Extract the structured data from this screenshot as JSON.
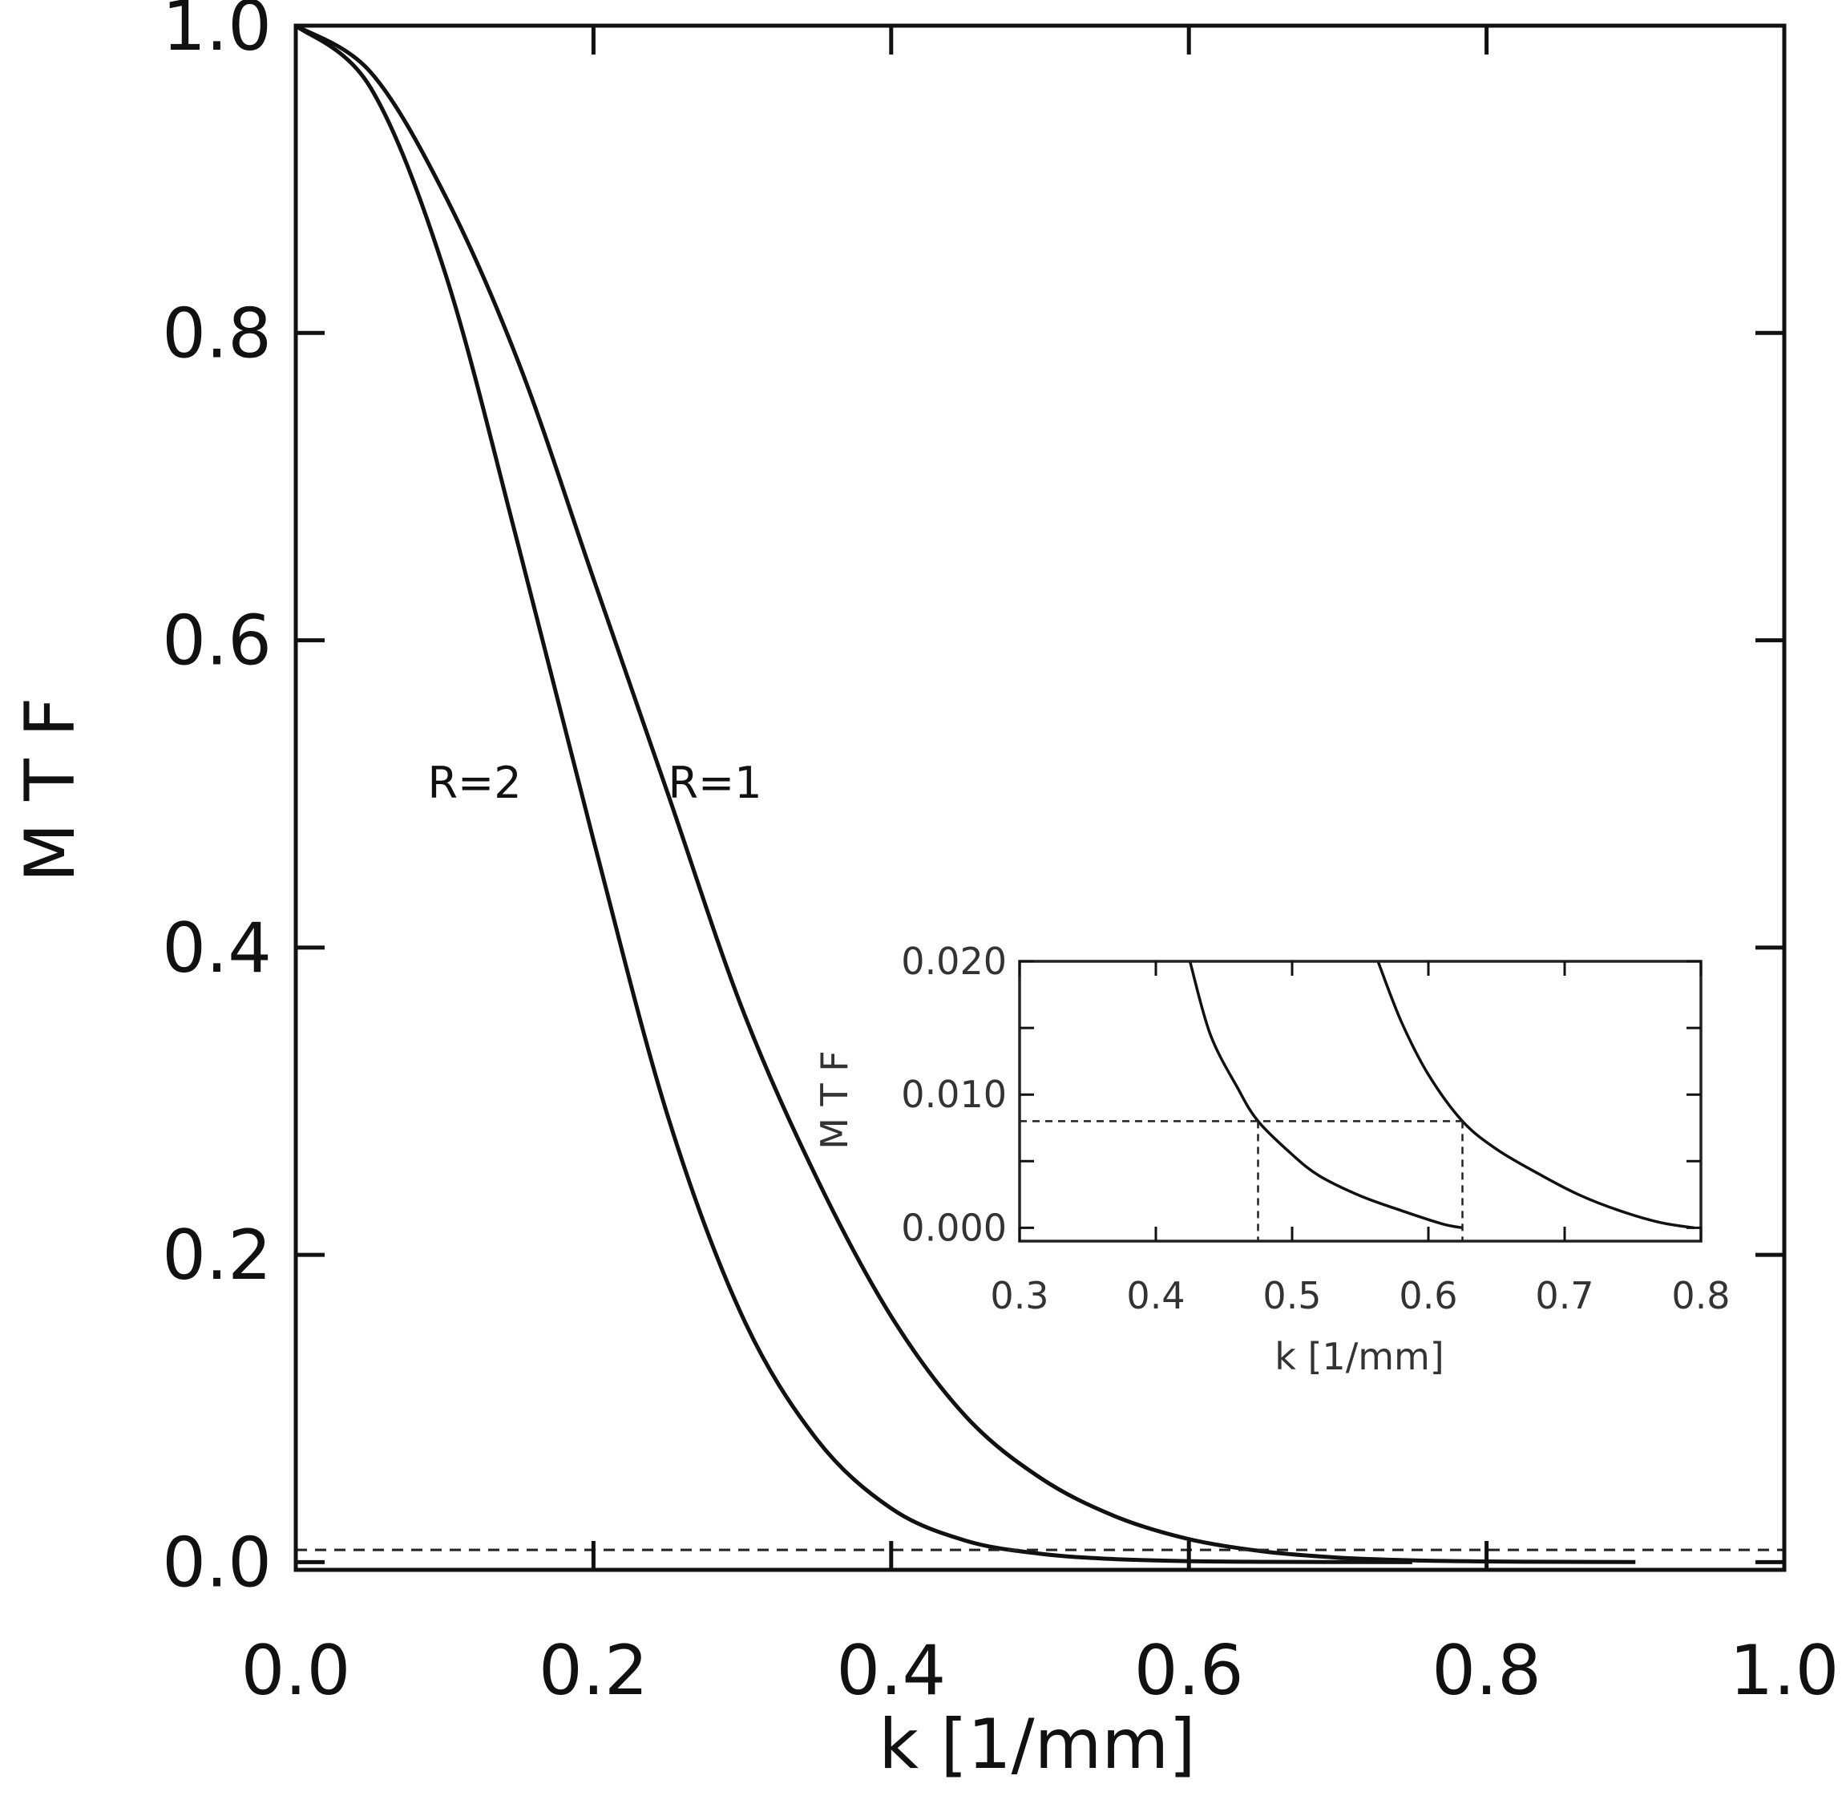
{
  "chart_data": [
    {
      "type": "line",
      "xlabel": "k [1/mm]",
      "ylabel": "M T F",
      "xlim": [
        0,
        1
      ],
      "ylim": [
        -0.005,
        1.0
      ],
      "xticks": [
        "0.0",
        "0.2",
        "0.4",
        "0.6",
        "0.8",
        "1.0"
      ],
      "yticks": [
        "0.0",
        "0.2",
        "0.4",
        "0.6",
        "0.8",
        "1.0"
      ],
      "grid": false,
      "series": [
        {
          "name": "R=1",
          "x": [
            0,
            0.05,
            0.1,
            0.15,
            0.2,
            0.25,
            0.3,
            0.35,
            0.4,
            0.45,
            0.5,
            0.55,
            0.6,
            0.65,
            0.7,
            0.75,
            0.8,
            0.85,
            0.9
          ],
          "y": [
            1.0,
            0.97,
            0.89,
            0.78,
            0.64,
            0.5,
            0.36,
            0.25,
            0.16,
            0.095,
            0.055,
            0.03,
            0.015,
            0.007,
            0.003,
            0.0012,
            0.0005,
            0.0002,
            0.0001
          ]
        },
        {
          "name": "R=2",
          "x": [
            0,
            0.05,
            0.1,
            0.15,
            0.2,
            0.25,
            0.3,
            0.35,
            0.4,
            0.45,
            0.5,
            0.55,
            0.6,
            0.65,
            0.7,
            0.75
          ],
          "y": [
            1.0,
            0.96,
            0.84,
            0.66,
            0.47,
            0.29,
            0.16,
            0.08,
            0.035,
            0.014,
            0.0055,
            0.002,
            0.0007,
            0.0002,
            0.0001,
            0.0
          ]
        }
      ],
      "reference_line": {
        "y": 0.008,
        "style": "dashed"
      }
    },
    {
      "type": "line",
      "role": "inset",
      "xlabel": "k [1/mm]",
      "ylabel": "M T F",
      "xlim": [
        0.3,
        0.8
      ],
      "ylim": [
        -0.001,
        0.02
      ],
      "xticks": [
        "0.3",
        "0.4",
        "0.5",
        "0.6",
        "0.7",
        "0.8"
      ],
      "yticks": [
        "0.000",
        "0.010",
        "0.020"
      ],
      "grid": false,
      "series": [
        {
          "name": "R=2",
          "x": [
            0.425,
            0.44,
            0.46,
            0.475,
            0.5,
            0.52,
            0.55,
            0.58,
            0.61,
            0.625
          ],
          "y": [
            0.02,
            0.0145,
            0.0105,
            0.008,
            0.0055,
            0.0039,
            0.0024,
            0.0013,
            0.0003,
            0.0
          ]
        },
        {
          "name": "R=1",
          "x": [
            0.563,
            0.58,
            0.6,
            0.625,
            0.65,
            0.68,
            0.71,
            0.74,
            0.77,
            0.795
          ],
          "y": [
            0.02,
            0.0155,
            0.0115,
            0.008,
            0.0059,
            0.0041,
            0.0025,
            0.0013,
            0.0004,
            0.0
          ]
        }
      ],
      "reference_line": {
        "y": 0.008,
        "style": "dashed"
      },
      "vertical_markers": [
        {
          "x": 0.475,
          "style": "dashed"
        },
        {
          "x": 0.625,
          "style": "dashed"
        }
      ]
    }
  ],
  "annotations": {
    "r2_label": "R=2",
    "r1_label": "R=1"
  }
}
